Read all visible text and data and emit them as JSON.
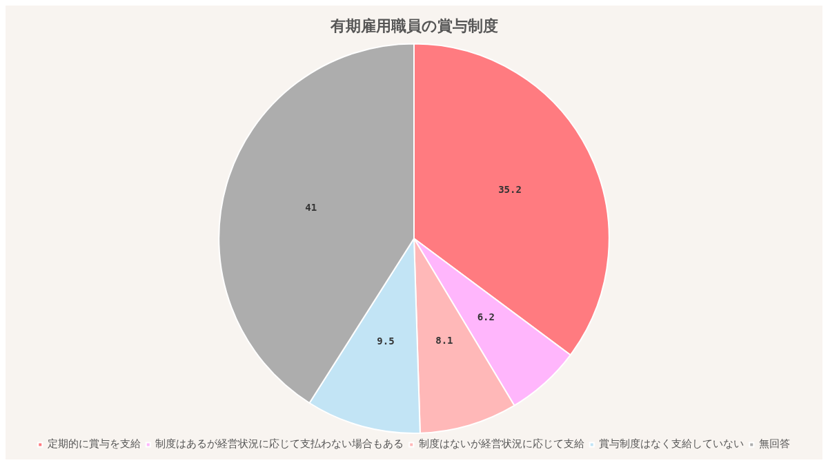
{
  "chart_data": {
    "type": "pie",
    "title": "有期雇用職員の賞与制度",
    "categories": [
      "定期的に賞与を支給",
      "制度はあるが経営状況に応じて支払わない場合もある",
      "制度はないが経営状況に応じて支給",
      "賞与制度はなく支給していない",
      "無回答"
    ],
    "values": [
      35.2,
      6.2,
      8.1,
      9.5,
      41
    ],
    "colors": [
      "#ff7b80",
      "#ffb6fc",
      "#ffb8b8",
      "#c2e4f5",
      "#adadad"
    ],
    "data_labels": true,
    "legend": "bottom"
  }
}
